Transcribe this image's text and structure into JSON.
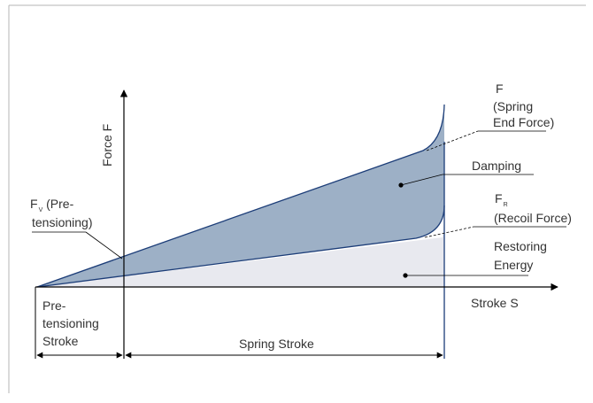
{
  "diagram": {
    "axes": {
      "y_label": "Force F",
      "x_label": "Stroke S"
    },
    "labels": {
      "f_title": "F",
      "f_line1": "(Spring",
      "f_line2": "End Force)",
      "damping": "Damping",
      "fr_main": "F",
      "fr_sub": "R",
      "fr_line": "(Recoil Force)",
      "restoring1": "Restoring",
      "restoring2": "Energy",
      "fv_main": "F",
      "fv_sub": "V",
      "fv_rest": " (Pre-",
      "fv_line2": "tensioning)",
      "pre_line1": "Pre-",
      "pre_line2": "tensioning",
      "pre_line3": "Stroke",
      "spring_stroke": "Spring Stroke"
    },
    "colors": {
      "damping_fill": "#9db0c6",
      "restoring_fill": "#e8e9ef",
      "curve_stroke": "#1c3d78",
      "frame": "#b5b5b5",
      "text": "#333333"
    }
  }
}
